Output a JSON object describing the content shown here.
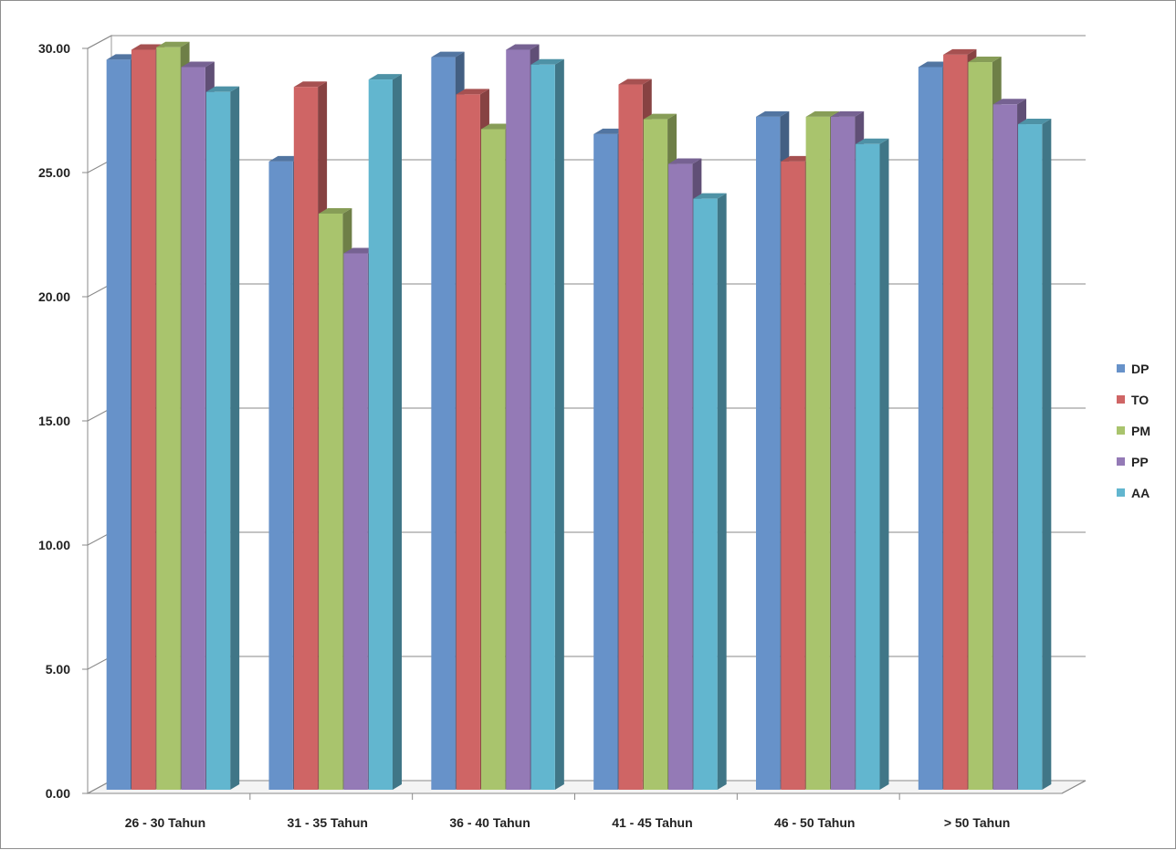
{
  "chart_data": {
    "type": "bar",
    "style": "3d-clustered-column",
    "categories": [
      "26 - 30 Tahun",
      "31 - 35 Tahun",
      "36 - 40 Tahun",
      "41 - 45 Tahun",
      "46 - 50 Tahun",
      "> 50 Tahun"
    ],
    "series": [
      {
        "name": "DP",
        "color": "#6792c9",
        "values": [
          29.4,
          25.3,
          29.5,
          26.4,
          27.1,
          29.1
        ]
      },
      {
        "name": "TO",
        "color": "#cf6565",
        "values": [
          29.8,
          28.3,
          28.0,
          28.4,
          25.3,
          29.6
        ]
      },
      {
        "name": "PM",
        "color": "#a9c46d",
        "values": [
          29.9,
          23.2,
          26.6,
          27.0,
          27.1,
          29.3
        ]
      },
      {
        "name": "PP",
        "color": "#947ab6",
        "values": [
          29.1,
          21.6,
          29.8,
          25.2,
          27.1,
          27.6
        ]
      },
      {
        "name": "AA",
        "color": "#62b6cf",
        "values": [
          28.1,
          28.6,
          29.2,
          23.8,
          26.0,
          26.8
        ]
      }
    ],
    "yticks": [
      "0.00",
      "5.00",
      "10.00",
      "15.00",
      "20.00",
      "25.00",
      "30.00"
    ],
    "ylim": [
      0,
      30
    ],
    "grid": true,
    "legend_position": "right",
    "title": "",
    "xlabel": "",
    "ylabel": ""
  }
}
